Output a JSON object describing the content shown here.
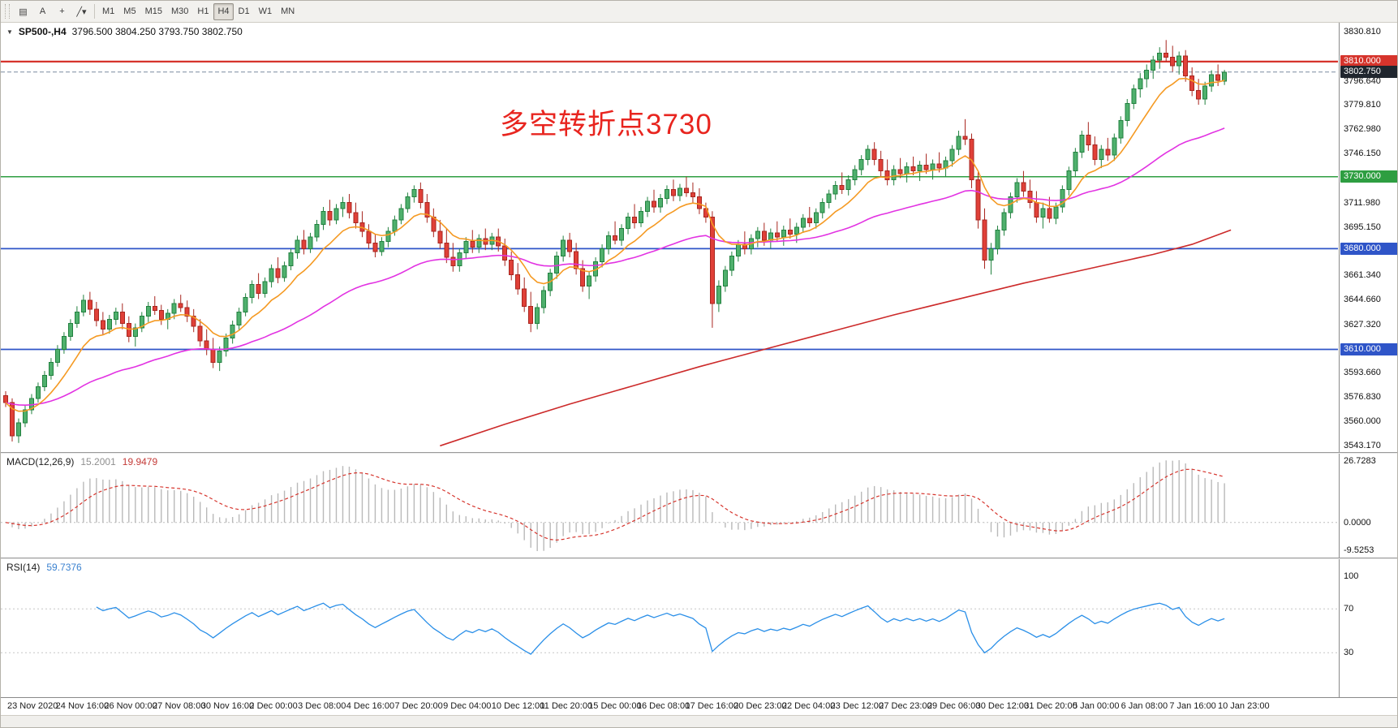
{
  "toolbar": {
    "left_buttons": [
      {
        "name": "charts-grid",
        "glyph": "▤"
      },
      {
        "name": "annotate-text",
        "glyph": "A"
      },
      {
        "name": "crosshair",
        "glyph": "+"
      },
      {
        "name": "objects-dropdown",
        "glyph": "╱▾"
      }
    ],
    "timeframes": [
      "M1",
      "M5",
      "M15",
      "M30",
      "H1",
      "H4",
      "D1",
      "W1",
      "MN"
    ],
    "active_timeframe": "H4"
  },
  "chart": {
    "symbol_period": "SP500-,H4",
    "ohlc": "3796.500 3804.250 3793.750 3802.750",
    "annotation": "多空转折点3730",
    "annotation_color": "#e8251f",
    "axis_ticks": [
      "3830.810",
      "3796.640",
      "3779.810",
      "3762.980",
      "3746.150",
      "3711.980",
      "3695.150",
      "3661.340",
      "3644.660",
      "3627.320",
      "3593.660",
      "3576.830",
      "3560.000",
      "3543.170"
    ],
    "levels": [
      {
        "price": 3810.0,
        "label": "3810.000",
        "color": "#d6342c",
        "width": 2.2
      },
      {
        "price": 3730.0,
        "label": "3730.000",
        "color": "#2e9e41",
        "width": 1.6
      },
      {
        "price": 3680.0,
        "label": "3680.000",
        "color": "#2f55c8",
        "width": 1.8
      },
      {
        "price": 3610.0,
        "label": "3610.000",
        "color": "#2f55c8",
        "width": 1.8
      }
    ],
    "current_price": {
      "value": 3802.75,
      "label": "3802.750",
      "box_color": "#20262e",
      "line_color": "#7a8aa0"
    },
    "colors": {
      "up_fill": "#4fb06d",
      "up_edge": "#22813f",
      "down_fill": "#e04038",
      "down_edge": "#a8261f",
      "ma_fast": "#f59a23",
      "ma_mid": "#e233e2",
      "ma_slow": "#cc2a2a"
    },
    "dates": [
      "23 Nov 2020",
      "24 Nov 16:00",
      "26 Nov 00:00",
      "27 Nov 08:00",
      "30 Nov 16:00",
      "2 Dec 00:00",
      "3 Dec 08:00",
      "4 Dec 16:00",
      "7 Dec 20:00",
      "9 Dec 04:00",
      "10 Dec 12:00",
      "11 Dec 20:00",
      "15 Dec 00:00",
      "16 Dec 08:00",
      "17 Dec 16:00",
      "20 Dec 23:00",
      "22 Dec 04:00",
      "23 Dec 12:00",
      "27 Dec 23:00",
      "29 Dec 06:00",
      "30 Dec 12:00",
      "31 Dec 20:00",
      "5 Jan 00:00",
      "6 Jan 08:00",
      "7 Jan 16:00",
      "10 Jan 23:00"
    ],
    "candles": [
      [
        3578,
        3581,
        3570,
        3573
      ],
      [
        3573,
        3576,
        3546,
        3550
      ],
      [
        3550,
        3562,
        3545,
        3559
      ],
      [
        3559,
        3571,
        3556,
        3568
      ],
      [
        3568,
        3579,
        3565,
        3576
      ],
      [
        3576,
        3587,
        3573,
        3584
      ],
      [
        3584,
        3595,
        3581,
        3592
      ],
      [
        3592,
        3604,
        3589,
        3601
      ],
      [
        3601,
        3613,
        3598,
        3610
      ],
      [
        3610,
        3622,
        3607,
        3619
      ],
      [
        3619,
        3631,
        3616,
        3628
      ],
      [
        3628,
        3640,
        3625,
        3636
      ],
      [
        3636,
        3648,
        3633,
        3644
      ],
      [
        3644,
        3650,
        3634,
        3638
      ],
      [
        3638,
        3643,
        3626,
        3630
      ],
      [
        3630,
        3636,
        3620,
        3624
      ],
      [
        3624,
        3634,
        3621,
        3631
      ],
      [
        3631,
        3639,
        3627,
        3636
      ],
      [
        3636,
        3642,
        3624,
        3628
      ],
      [
        3628,
        3633,
        3615,
        3619
      ],
      [
        3619,
        3628,
        3612,
        3625
      ],
      [
        3625,
        3636,
        3622,
        3633
      ],
      [
        3633,
        3643,
        3629,
        3640
      ],
      [
        3640,
        3647,
        3634,
        3637
      ],
      [
        3637,
        3641,
        3627,
        3631
      ],
      [
        3631,
        3638,
        3624,
        3635
      ],
      [
        3635,
        3645,
        3631,
        3642
      ],
      [
        3642,
        3648,
        3636,
        3639
      ],
      [
        3639,
        3644,
        3629,
        3633
      ],
      [
        3633,
        3638,
        3622,
        3626
      ],
      [
        3626,
        3631,
        3612,
        3616
      ],
      [
        3616,
        3624,
        3606,
        3610
      ],
      [
        3610,
        3618,
        3597,
        3601
      ],
      [
        3601,
        3612,
        3595,
        3609
      ],
      [
        3609,
        3621,
        3605,
        3618
      ],
      [
        3618,
        3630,
        3614,
        3627
      ],
      [
        3627,
        3639,
        3623,
        3636
      ],
      [
        3636,
        3649,
        3633,
        3646
      ],
      [
        3646,
        3658,
        3642,
        3655
      ],
      [
        3655,
        3663,
        3645,
        3649
      ],
      [
        3649,
        3660,
        3646,
        3657
      ],
      [
        3657,
        3669,
        3653,
        3666
      ],
      [
        3666,
        3674,
        3656,
        3660
      ],
      [
        3660,
        3671,
        3657,
        3668
      ],
      [
        3668,
        3680,
        3665,
        3677
      ],
      [
        3677,
        3689,
        3673,
        3686
      ],
      [
        3686,
        3693,
        3676,
        3680
      ],
      [
        3680,
        3691,
        3677,
        3688
      ],
      [
        3688,
        3700,
        3685,
        3697
      ],
      [
        3697,
        3709,
        3693,
        3706
      ],
      [
        3706,
        3714,
        3696,
        3700
      ],
      [
        3700,
        3711,
        3697,
        3708
      ],
      [
        3708,
        3716,
        3702,
        3712
      ],
      [
        3712,
        3718,
        3701,
        3705
      ],
      [
        3705,
        3712,
        3694,
        3698
      ],
      [
        3698,
        3706,
        3688,
        3692
      ],
      [
        3692,
        3697,
        3680,
        3684
      ],
      [
        3684,
        3690,
        3674,
        3678
      ],
      [
        3678,
        3688,
        3675,
        3685
      ],
      [
        3685,
        3695,
        3681,
        3692
      ],
      [
        3692,
        3703,
        3689,
        3700
      ],
      [
        3700,
        3711,
        3697,
        3708
      ],
      [
        3708,
        3719,
        3705,
        3716
      ],
      [
        3716,
        3724,
        3712,
        3721
      ],
      [
        3721,
        3726,
        3708,
        3712
      ],
      [
        3712,
        3718,
        3698,
        3702
      ],
      [
        3702,
        3708,
        3688,
        3692
      ],
      [
        3692,
        3700,
        3680,
        3684
      ],
      [
        3684,
        3694,
        3670,
        3674
      ],
      [
        3674,
        3684,
        3664,
        3668
      ],
      [
        3668,
        3680,
        3664,
        3677
      ],
      [
        3677,
        3688,
        3673,
        3685
      ],
      [
        3685,
        3693,
        3677,
        3681
      ],
      [
        3681,
        3690,
        3677,
        3687
      ],
      [
        3687,
        3694,
        3679,
        3683
      ],
      [
        3683,
        3691,
        3679,
        3688
      ],
      [
        3688,
        3694,
        3678,
        3682
      ],
      [
        3682,
        3687,
        3668,
        3672
      ],
      [
        3672,
        3678,
        3658,
        3662
      ],
      [
        3662,
        3670,
        3648,
        3652
      ],
      [
        3652,
        3660,
        3636,
        3640
      ],
      [
        3640,
        3650,
        3622,
        3628
      ],
      [
        3628,
        3642,
        3624,
        3639
      ],
      [
        3639,
        3654,
        3635,
        3651
      ],
      [
        3651,
        3666,
        3647,
        3663
      ],
      [
        3663,
        3678,
        3659,
        3675
      ],
      [
        3675,
        3689,
        3671,
        3686
      ],
      [
        3686,
        3691,
        3674,
        3678
      ],
      [
        3678,
        3684,
        3662,
        3666
      ],
      [
        3666,
        3672,
        3650,
        3654
      ],
      [
        3654,
        3664,
        3645,
        3661
      ],
      [
        3661,
        3674,
        3657,
        3671
      ],
      [
        3671,
        3683,
        3667,
        3680
      ],
      [
        3680,
        3692,
        3676,
        3689
      ],
      [
        3689,
        3699,
        3683,
        3686
      ],
      [
        3686,
        3697,
        3682,
        3694
      ],
      [
        3694,
        3705,
        3690,
        3702
      ],
      [
        3702,
        3711,
        3694,
        3698
      ],
      [
        3698,
        3709,
        3695,
        3706
      ],
      [
        3706,
        3716,
        3702,
        3713
      ],
      [
        3713,
        3721,
        3705,
        3709
      ],
      [
        3709,
        3718,
        3705,
        3715
      ],
      [
        3715,
        3724,
        3711,
        3721
      ],
      [
        3721,
        3728,
        3713,
        3717
      ],
      [
        3717,
        3725,
        3713,
        3722
      ],
      [
        3722,
        3730,
        3716,
        3719
      ],
      [
        3719,
        3726,
        3712,
        3716
      ],
      [
        3716,
        3722,
        3704,
        3708
      ],
      [
        3708,
        3712,
        3698,
        3702
      ],
      [
        3702,
        3706,
        3625,
        3642
      ],
      [
        3642,
        3658,
        3636,
        3654
      ],
      [
        3654,
        3668,
        3650,
        3665
      ],
      [
        3665,
        3678,
        3661,
        3675
      ],
      [
        3675,
        3686,
        3671,
        3683
      ],
      [
        3683,
        3692,
        3676,
        3680
      ],
      [
        3680,
        3690,
        3676,
        3687
      ],
      [
        3687,
        3695,
        3681,
        3692
      ],
      [
        3692,
        3698,
        3682,
        3686
      ],
      [
        3686,
        3694,
        3680,
        3691
      ],
      [
        3691,
        3699,
        3685,
        3688
      ],
      [
        3688,
        3696,
        3682,
        3693
      ],
      [
        3693,
        3701,
        3687,
        3690
      ],
      [
        3690,
        3698,
        3684,
        3695
      ],
      [
        3695,
        3704,
        3691,
        3701
      ],
      [
        3701,
        3709,
        3695,
        3698
      ],
      [
        3698,
        3708,
        3694,
        3705
      ],
      [
        3705,
        3715,
        3701,
        3712
      ],
      [
        3712,
        3721,
        3708,
        3718
      ],
      [
        3718,
        3727,
        3714,
        3724
      ],
      [
        3724,
        3733,
        3718,
        3721
      ],
      [
        3721,
        3731,
        3717,
        3728
      ],
      [
        3728,
        3738,
        3724,
        3735
      ],
      [
        3735,
        3745,
        3731,
        3742
      ],
      [
        3742,
        3752,
        3738,
        3749
      ],
      [
        3749,
        3754,
        3738,
        3742
      ],
      [
        3742,
        3748,
        3730,
        3734
      ],
      [
        3734,
        3742,
        3724,
        3728
      ],
      [
        3728,
        3738,
        3724,
        3735
      ],
      [
        3735,
        3743,
        3729,
        3732
      ],
      [
        3732,
        3740,
        3726,
        3737
      ],
      [
        3737,
        3744,
        3731,
        3734
      ],
      [
        3734,
        3741,
        3727,
        3738
      ],
      [
        3738,
        3746,
        3732,
        3735
      ],
      [
        3735,
        3742,
        3728,
        3739
      ],
      [
        3739,
        3747,
        3733,
        3736
      ],
      [
        3736,
        3744,
        3730,
        3741
      ],
      [
        3741,
        3752,
        3737,
        3749
      ],
      [
        3749,
        3762,
        3745,
        3758
      ],
      [
        3758,
        3770,
        3752,
        3756
      ],
      [
        3756,
        3760,
        3722,
        3728
      ],
      [
        3728,
        3734,
        3694,
        3700
      ],
      [
        3700,
        3708,
        3666,
        3672
      ],
      [
        3672,
        3684,
        3662,
        3680
      ],
      [
        3680,
        3696,
        3676,
        3693
      ],
      [
        3693,
        3708,
        3689,
        3705
      ],
      [
        3705,
        3719,
        3701,
        3716
      ],
      [
        3716,
        3729,
        3712,
        3726
      ],
      [
        3726,
        3734,
        3716,
        3720
      ],
      [
        3720,
        3728,
        3708,
        3712
      ],
      [
        3712,
        3720,
        3698,
        3702
      ],
      [
        3702,
        3712,
        3694,
        3708
      ],
      [
        3708,
        3716,
        3698,
        3701
      ],
      [
        3701,
        3712,
        3697,
        3709
      ],
      [
        3709,
        3724,
        3705,
        3721
      ],
      [
        3721,
        3737,
        3717,
        3734
      ],
      [
        3734,
        3750,
        3730,
        3747
      ],
      [
        3747,
        3762,
        3743,
        3759
      ],
      [
        3759,
        3768,
        3748,
        3752
      ],
      [
        3752,
        3758,
        3738,
        3742
      ],
      [
        3742,
        3752,
        3736,
        3749
      ],
      [
        3749,
        3757,
        3741,
        3745
      ],
      [
        3745,
        3760,
        3741,
        3757
      ],
      [
        3757,
        3772,
        3753,
        3769
      ],
      [
        3769,
        3784,
        3765,
        3781
      ],
      [
        3781,
        3794,
        3777,
        3791
      ],
      [
        3791,
        3802,
        3785,
        3798
      ],
      [
        3798,
        3808,
        3792,
        3804
      ],
      [
        3804,
        3814,
        3798,
        3811
      ],
      [
        3811,
        3820,
        3805,
        3816
      ],
      [
        3816,
        3825,
        3810,
        3813
      ],
      [
        3813,
        3821,
        3803,
        3807
      ],
      [
        3807,
        3817,
        3801,
        3814
      ],
      [
        3814,
        3818,
        3796,
        3800
      ],
      [
        3800,
        3806,
        3786,
        3790
      ],
      [
        3790,
        3798,
        3780,
        3784
      ],
      [
        3784,
        3796,
        3780,
        3793
      ],
      [
        3793,
        3804,
        3789,
        3801
      ],
      [
        3801,
        3808,
        3793,
        3797
      ],
      [
        3796.5,
        3804.25,
        3793.75,
        3802.75
      ]
    ],
    "ma_slow_anchors": [
      [
        67,
        3543
      ],
      [
        77,
        3558
      ],
      [
        87,
        3572
      ],
      [
        97,
        3585
      ],
      [
        107,
        3598
      ],
      [
        117,
        3610
      ],
      [
        127,
        3622
      ],
      [
        137,
        3634
      ],
      [
        147,
        3645
      ],
      [
        157,
        3656
      ],
      [
        167,
        3666
      ],
      [
        177,
        3676
      ],
      [
        183,
        3683
      ],
      [
        189,
        3693
      ]
    ]
  },
  "macd": {
    "title": "MACD(12,26,9)",
    "main_value": "15.2001",
    "signal_value": "19.9479",
    "axis_max": "26.7283",
    "axis_zero": "0.0000",
    "axis_min": "-9.5253",
    "histogram_color": "#b9b9b9",
    "signal_color": "#d6342c"
  },
  "rsi": {
    "title": "RSI(14)",
    "value": "59.7376",
    "axis": [
      "100",
      "70",
      "30"
    ],
    "levels": [
      70,
      30
    ],
    "line_color": "#2a8fe8"
  }
}
